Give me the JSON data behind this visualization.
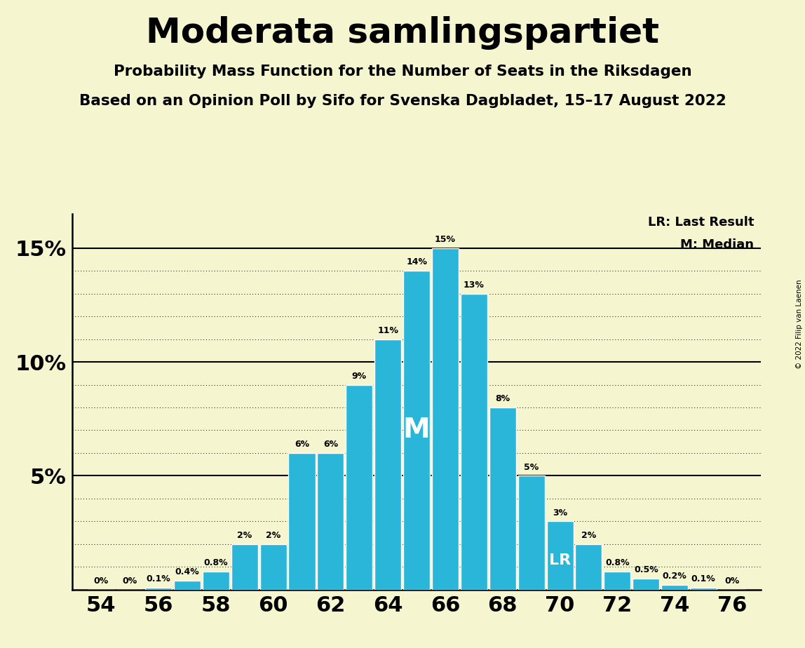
{
  "title": "Moderata samlingspartiet",
  "subtitle1": "Probability Mass Function for the Number of Seats in the Riksdagen",
  "subtitle2": "Based on an Opinion Poll by Sifo for Svenska Dagbladet, 15–17 August 2022",
  "copyright": "© 2022 Filip van Laenen",
  "seats": [
    54,
    55,
    56,
    57,
    58,
    59,
    60,
    61,
    62,
    63,
    64,
    65,
    66,
    67,
    68,
    69,
    70,
    71,
    72,
    73,
    74,
    75,
    76
  ],
  "probs": [
    0.0,
    0.0,
    0.1,
    0.4,
    0.8,
    2.0,
    2.0,
    6.0,
    6.0,
    9.0,
    11.0,
    14.0,
    15.0,
    13.0,
    8.0,
    5.0,
    3.0,
    2.0,
    0.8,
    0.5,
    0.2,
    0.1,
    0.0
  ],
  "bar_color": "#29b6d8",
  "background_color": "#f5f5d0",
  "median_seat": 65,
  "last_result_seat": 70,
  "median_label": "M",
  "lr_label": "LR",
  "legend_lr": "LR: Last Result",
  "legend_m": "M: Median",
  "ylim_max": 16.5,
  "xlim": [
    53.0,
    77.0
  ],
  "xticks": [
    54,
    56,
    58,
    60,
    62,
    64,
    66,
    68,
    70,
    72,
    74,
    76
  ],
  "ytick_solid": [
    5,
    10,
    15
  ],
  "ytick_dotted": [
    1,
    2,
    3,
    4,
    6,
    7,
    8,
    9,
    11,
    12,
    13,
    14
  ]
}
